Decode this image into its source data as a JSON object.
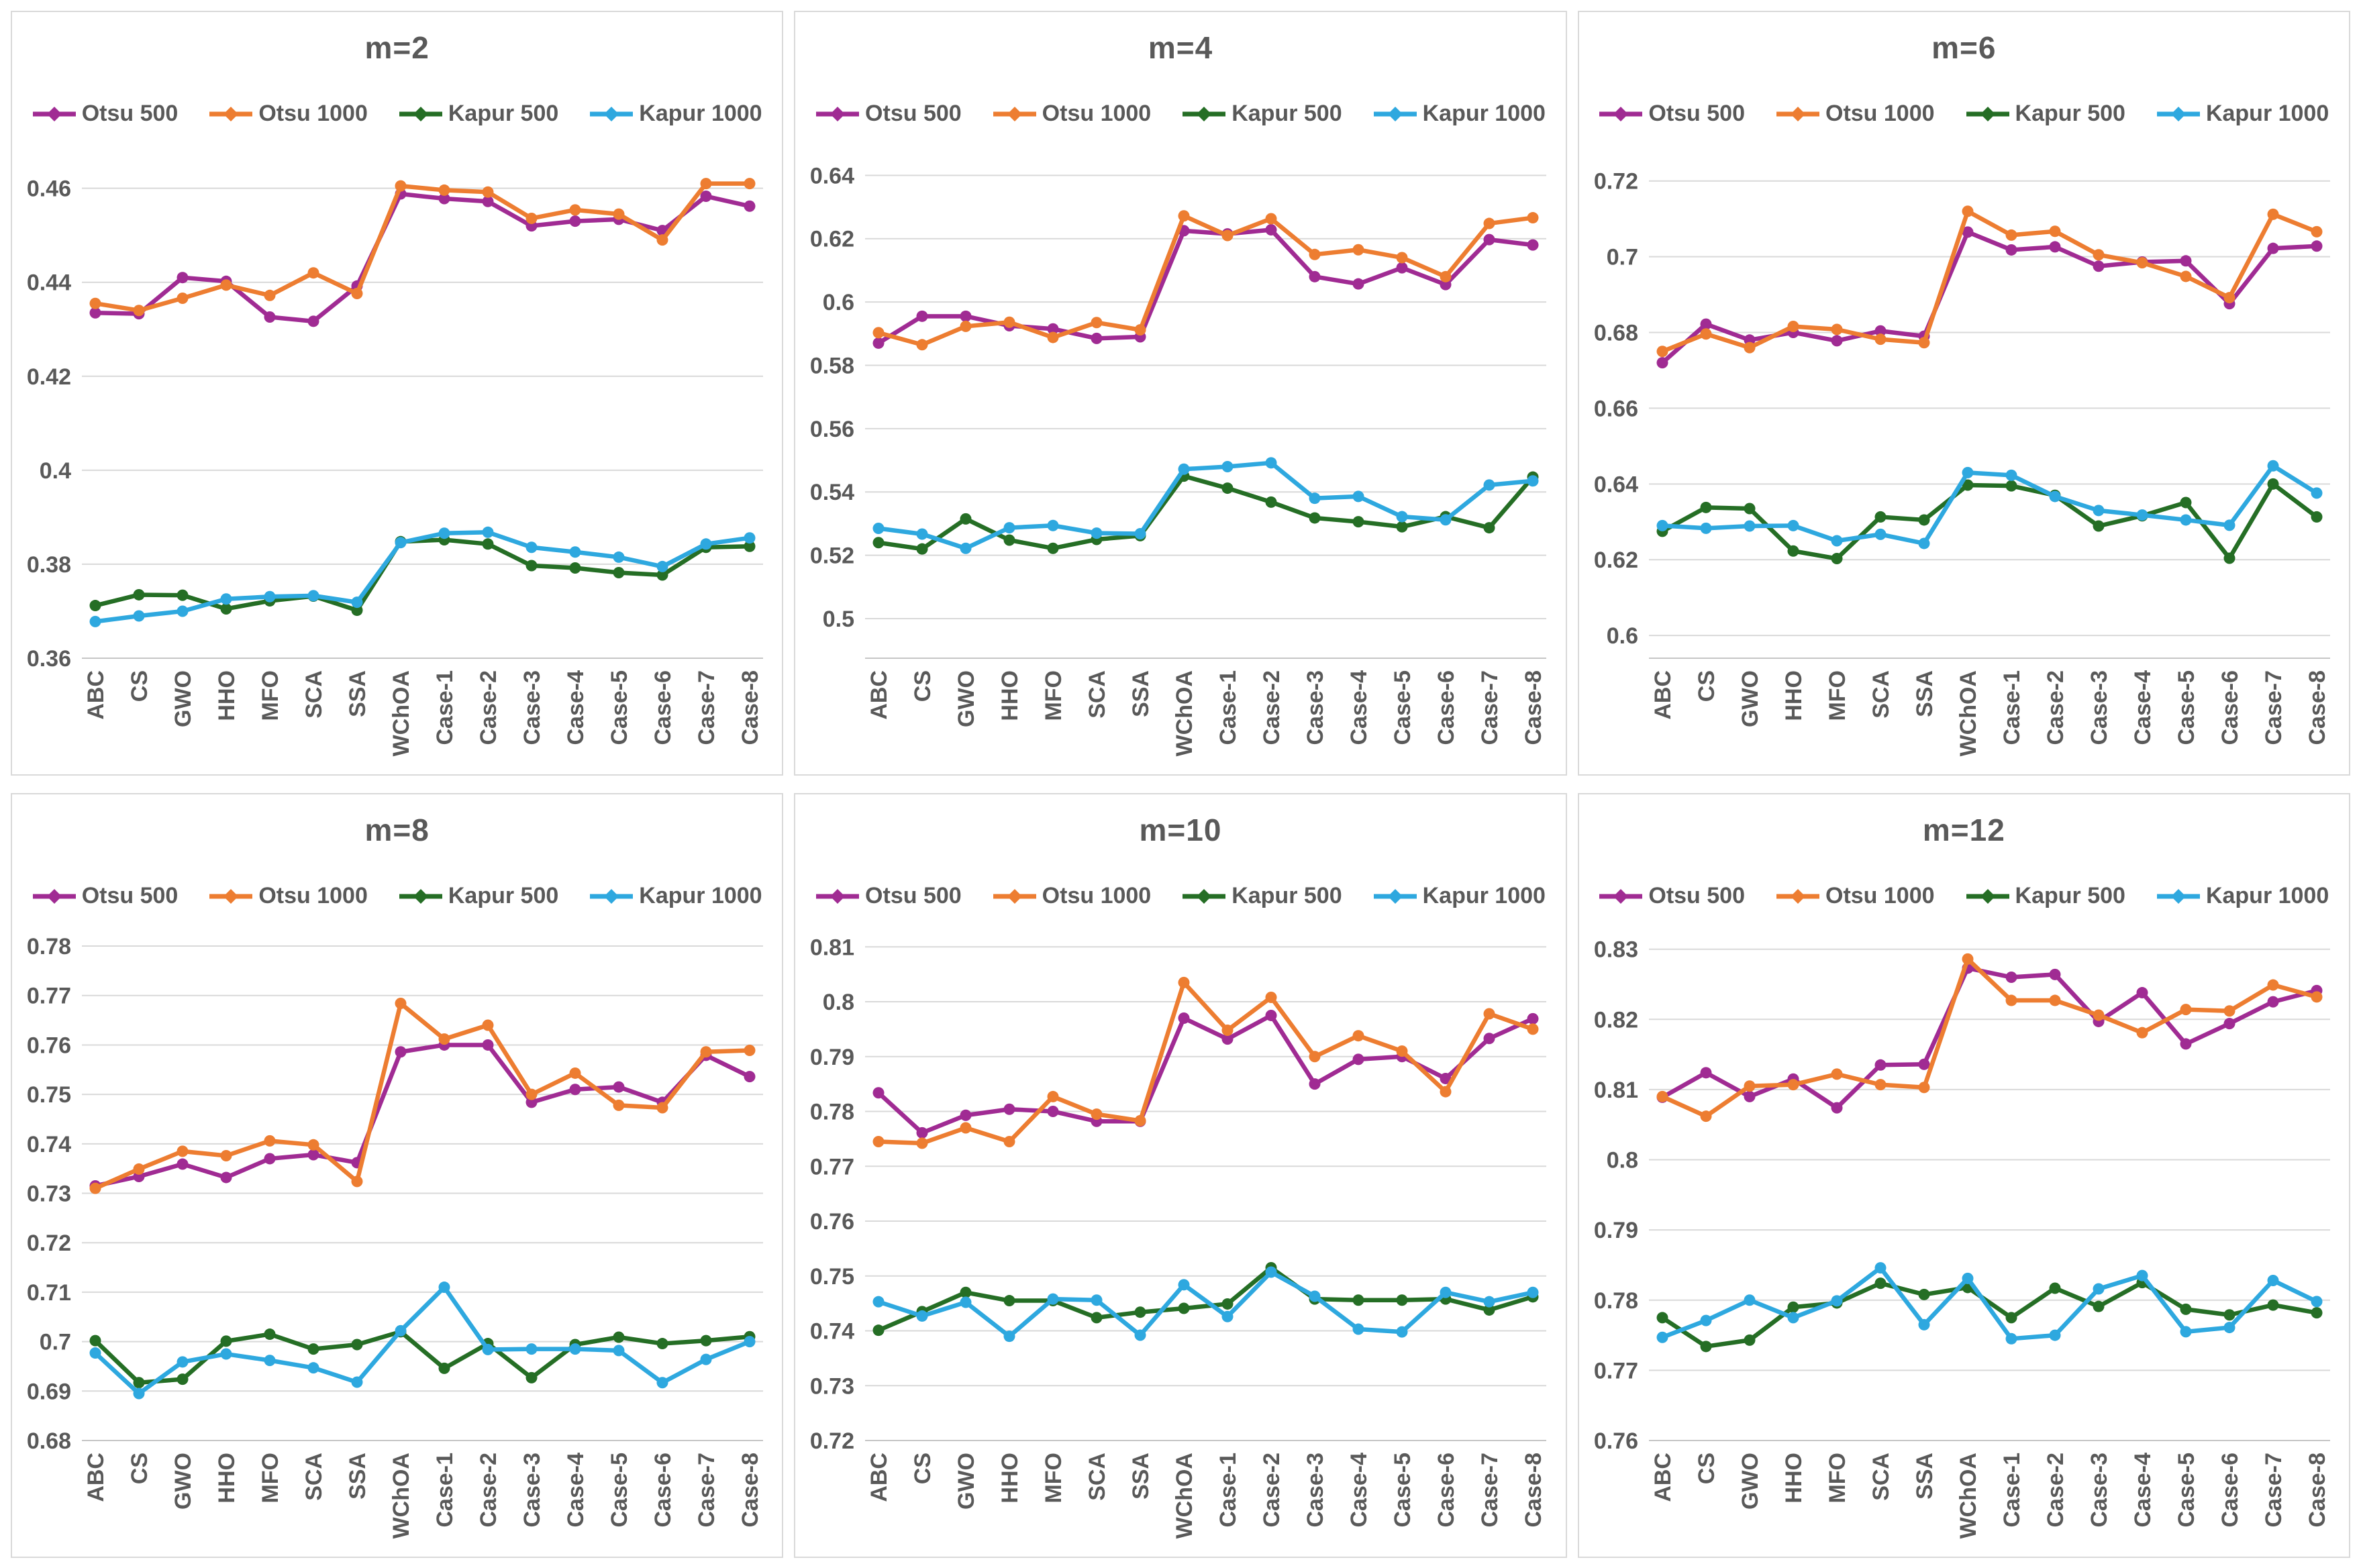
{
  "page": {
    "background": "#FFFFFF",
    "panel_border_color": "#D9D9D9",
    "grid_color": "#D9D9D9",
    "axis_color": "#C6C6C6",
    "text_color": "#595959"
  },
  "legend": {
    "entries": [
      {
        "name": "Otsu 500",
        "color": "#A02B93"
      },
      {
        "name": "Otsu 1000",
        "color": "#ED7D31"
      },
      {
        "name": "Kapur 500",
        "color": "#256E25"
      },
      {
        "name": "Kapur 1000",
        "color": "#2EA8DF"
      }
    ],
    "position": "top"
  },
  "chart_data": [
    {
      "type": "line",
      "title": "m=2",
      "xlabel": "",
      "ylabel": "",
      "grid": true,
      "legend_position": "top",
      "categories": [
        "ABC",
        "CS",
        "GWO",
        "HHO",
        "MFO",
        "SCA",
        "SSA",
        "WChOA",
        "Case-1",
        "Case-2",
        "Case-3",
        "Case-4",
        "Case-5",
        "Case-6",
        "Case-7",
        "Case-8"
      ],
      "y_ticks": [
        0.36,
        0.38,
        0.4,
        0.42,
        0.44,
        0.46
      ],
      "ylim": [
        0.36,
        0.4668
      ],
      "series": [
        {
          "name": "Otsu 500",
          "color": "#A02B93",
          "values": [
            0.4335,
            0.4333,
            0.441,
            0.4402,
            0.4326,
            0.4317,
            0.4392,
            0.4588,
            0.4578,
            0.4572,
            0.452,
            0.453,
            0.4534,
            0.451,
            0.4583,
            0.4562
          ]
        },
        {
          "name": "Otsu 1000",
          "color": "#ED7D31",
          "values": [
            0.4355,
            0.434,
            0.4366,
            0.4394,
            0.4372,
            0.442,
            0.4376,
            0.4605,
            0.4596,
            0.4592,
            0.4536,
            0.4554,
            0.4545,
            0.449,
            0.461,
            0.461
          ]
        },
        {
          "name": "Kapur 500",
          "color": "#256E25",
          "values": [
            0.3712,
            0.3735,
            0.3734,
            0.3705,
            0.3722,
            0.3732,
            0.3702,
            0.3848,
            0.3852,
            0.3843,
            0.3797,
            0.3792,
            0.3782,
            0.3777,
            0.3836,
            0.3838
          ]
        },
        {
          "name": "Kapur 1000",
          "color": "#2EA8DF",
          "values": [
            0.3678,
            0.369,
            0.37,
            0.3726,
            0.3731,
            0.3733,
            0.3719,
            0.3846,
            0.3866,
            0.3868,
            0.3836,
            0.3826,
            0.3815,
            0.3795,
            0.3843,
            0.3856
          ]
        }
      ]
    },
    {
      "type": "line",
      "title": "m=4",
      "xlabel": "",
      "ylabel": "",
      "grid": true,
      "legend_position": "top",
      "categories": [
        "ABC",
        "CS",
        "GWO",
        "HHO",
        "MFO",
        "SCA",
        "SSA",
        "WChOA",
        "Case-1",
        "Case-2",
        "Case-3",
        "Case-4",
        "Case-5",
        "Case-6",
        "Case-7",
        "Case-8"
      ],
      "y_ticks": [
        0.5,
        0.52,
        0.54,
        0.56,
        0.58,
        0.6,
        0.62,
        0.64
      ],
      "ylim": [
        0.4875,
        0.646
      ],
      "series": [
        {
          "name": "Otsu 500",
          "color": "#A02B93",
          "values": [
            0.587,
            0.5955,
            0.5955,
            0.5925,
            0.5915,
            0.5885,
            0.589,
            0.6225,
            0.6215,
            0.6228,
            0.608,
            0.6057,
            0.6108,
            0.6055,
            0.6197,
            0.618
          ]
        },
        {
          "name": "Otsu 1000",
          "color": "#ED7D31",
          "values": [
            0.5903,
            0.5865,
            0.5923,
            0.5936,
            0.5888,
            0.5935,
            0.5912,
            0.6272,
            0.621,
            0.6263,
            0.615,
            0.6165,
            0.614,
            0.608,
            0.6248,
            0.6266
          ]
        },
        {
          "name": "Kapur 500",
          "color": "#256E25",
          "values": [
            0.524,
            0.522,
            0.5315,
            0.5248,
            0.5222,
            0.525,
            0.5262,
            0.545,
            0.5412,
            0.5368,
            0.5318,
            0.5306,
            0.529,
            0.5322,
            0.5287,
            0.5447
          ]
        },
        {
          "name": "Kapur 1000",
          "color": "#2EA8DF",
          "values": [
            0.5285,
            0.5267,
            0.5222,
            0.5287,
            0.5294,
            0.527,
            0.5268,
            0.5472,
            0.548,
            0.5492,
            0.538,
            0.5386,
            0.5322,
            0.5312,
            0.5422,
            0.5435
          ]
        }
      ]
    },
    {
      "type": "line",
      "title": "m=6",
      "xlabel": "",
      "ylabel": "",
      "grid": true,
      "legend_position": "top",
      "categories": [
        "ABC",
        "CS",
        "GWO",
        "HHO",
        "MFO",
        "SCA",
        "SSA",
        "WChOA",
        "Case-1",
        "Case-2",
        "Case-3",
        "Case-4",
        "Case-5",
        "Case-6",
        "Case-7",
        "Case-8"
      ],
      "y_ticks": [
        0.6,
        0.62,
        0.64,
        0.66,
        0.68,
        0.7,
        0.72
      ],
      "ylim": [
        0.594,
        0.7265
      ],
      "series": [
        {
          "name": "Otsu 500",
          "color": "#A02B93",
          "values": [
            0.672,
            0.6822,
            0.678,
            0.68,
            0.6778,
            0.6804,
            0.679,
            0.7065,
            0.7018,
            0.7026,
            0.6975,
            0.6986,
            0.6989,
            0.6876,
            0.7022,
            0.7028
          ]
        },
        {
          "name": "Otsu 1000",
          "color": "#ED7D31",
          "values": [
            0.675,
            0.6796,
            0.676,
            0.6816,
            0.6808,
            0.6782,
            0.6773,
            0.712,
            0.7057,
            0.7067,
            0.7005,
            0.6984,
            0.6948,
            0.6892,
            0.7112,
            0.7066
          ]
        },
        {
          "name": "Kapur 500",
          "color": "#256E25",
          "values": [
            0.6275,
            0.6338,
            0.6335,
            0.6223,
            0.6203,
            0.6313,
            0.6305,
            0.6397,
            0.6395,
            0.637,
            0.6289,
            0.6316,
            0.6351,
            0.6204,
            0.64,
            0.6313
          ]
        },
        {
          "name": "Kapur 1000",
          "color": "#2EA8DF",
          "values": [
            0.629,
            0.6283,
            0.6289,
            0.629,
            0.625,
            0.6267,
            0.6243,
            0.643,
            0.6423,
            0.6367,
            0.633,
            0.6318,
            0.6305,
            0.6291,
            0.6448,
            0.6376
          ]
        }
      ]
    },
    {
      "type": "line",
      "title": "m=8",
      "xlabel": "",
      "ylabel": "",
      "grid": true,
      "legend_position": "top",
      "categories": [
        "ABC",
        "CS",
        "GWO",
        "HHO",
        "MFO",
        "SCA",
        "SSA",
        "WChOA",
        "Case-1",
        "Case-2",
        "Case-3",
        "Case-4",
        "Case-5",
        "Case-6",
        "Case-7",
        "Case-8"
      ],
      "y_ticks": [
        0.68,
        0.69,
        0.7,
        0.71,
        0.72,
        0.73,
        0.74,
        0.75,
        0.76,
        0.77,
        0.78
      ],
      "ylim": [
        0.68,
        0.7815
      ],
      "series": [
        {
          "name": "Otsu 500",
          "color": "#A02B93",
          "values": [
            0.7315,
            0.7334,
            0.7359,
            0.7332,
            0.737,
            0.7378,
            0.7362,
            0.7586,
            0.76,
            0.76,
            0.7484,
            0.751,
            0.7515,
            0.7484,
            0.7579,
            0.7536
          ]
        },
        {
          "name": "Otsu 1000",
          "color": "#ED7D31",
          "values": [
            0.731,
            0.7349,
            0.7385,
            0.7376,
            0.7406,
            0.7398,
            0.7324,
            0.7684,
            0.7612,
            0.764,
            0.75,
            0.7543,
            0.7478,
            0.7473,
            0.7586,
            0.7589
          ]
        },
        {
          "name": "Kapur 500",
          "color": "#256E25",
          "values": [
            0.7002,
            0.6917,
            0.6924,
            0.7001,
            0.7015,
            0.6985,
            0.6994,
            0.702,
            0.6946,
            0.6996,
            0.6927,
            0.6994,
            0.7009,
            0.6996,
            0.7002,
            0.701
          ]
        },
        {
          "name": "Kapur 1000",
          "color": "#2EA8DF",
          "values": [
            0.6977,
            0.6895,
            0.6959,
            0.6975,
            0.6962,
            0.6947,
            0.6918,
            0.7022,
            0.711,
            0.6984,
            0.6985,
            0.6985,
            0.6982,
            0.6917,
            0.6964,
            0.7
          ]
        }
      ]
    },
    {
      "type": "line",
      "title": "m=10",
      "xlabel": "",
      "ylabel": "",
      "grid": true,
      "legend_position": "top",
      "categories": [
        "ABC",
        "CS",
        "GWO",
        "HHO",
        "MFO",
        "SCA",
        "SSA",
        "WChOA",
        "Case-1",
        "Case-2",
        "Case-3",
        "Case-4",
        "Case-5",
        "Case-6",
        "Case-7",
        "Case-8"
      ],
      "y_ticks": [
        0.72,
        0.73,
        0.74,
        0.75,
        0.76,
        0.77,
        0.78,
        0.79,
        0.8,
        0.81
      ],
      "ylim": [
        0.72,
        0.8115
      ],
      "series": [
        {
          "name": "Otsu 500",
          "color": "#A02B93",
          "values": [
            0.7834,
            0.7761,
            0.7793,
            0.7804,
            0.78,
            0.7782,
            0.7782,
            0.797,
            0.7932,
            0.7975,
            0.785,
            0.7895,
            0.79,
            0.786,
            0.7933,
            0.7969
          ]
        },
        {
          "name": "Otsu 1000",
          "color": "#ED7D31",
          "values": [
            0.7745,
            0.7742,
            0.777,
            0.7745,
            0.7827,
            0.7795,
            0.7783,
            0.8035,
            0.7948,
            0.8008,
            0.79,
            0.7938,
            0.791,
            0.7836,
            0.7978,
            0.795
          ]
        },
        {
          "name": "Kapur 500",
          "color": "#256E25",
          "values": [
            0.7401,
            0.7435,
            0.747,
            0.7455,
            0.7455,
            0.7424,
            0.7434,
            0.7441,
            0.7449,
            0.7515,
            0.7458,
            0.7456,
            0.7456,
            0.7458,
            0.7438,
            0.7462
          ]
        },
        {
          "name": "Kapur 1000",
          "color": "#2EA8DF",
          "values": [
            0.7453,
            0.7427,
            0.7452,
            0.739,
            0.7458,
            0.7456,
            0.7392,
            0.7484,
            0.7426,
            0.7507,
            0.7463,
            0.7403,
            0.7398,
            0.747,
            0.7453,
            0.747
          ]
        }
      ]
    },
    {
      "type": "line",
      "title": "m=12",
      "xlabel": "",
      "ylabel": "",
      "grid": true,
      "legend_position": "top",
      "categories": [
        "ABC",
        "CS",
        "GWO",
        "HHO",
        "MFO",
        "SCA",
        "SSA",
        "WChOA",
        "Case-1",
        "Case-2",
        "Case-3",
        "Case-4",
        "Case-5",
        "Case-6",
        "Case-7",
        "Case-8"
      ],
      "y_ticks": [
        0.76,
        0.77,
        0.78,
        0.79,
        0.8,
        0.81,
        0.82,
        0.83
      ],
      "ylim": [
        0.76,
        0.8315
      ],
      "series": [
        {
          "name": "Otsu 500",
          "color": "#A02B93",
          "values": [
            0.8089,
            0.8124,
            0.809,
            0.8115,
            0.8074,
            0.8135,
            0.8136,
            0.8273,
            0.826,
            0.8264,
            0.8197,
            0.8238,
            0.8165,
            0.8194,
            0.8225,
            0.8241
          ]
        },
        {
          "name": "Otsu 1000",
          "color": "#ED7D31",
          "values": [
            0.809,
            0.8062,
            0.8105,
            0.8107,
            0.8122,
            0.8107,
            0.8103,
            0.8286,
            0.8227,
            0.8227,
            0.8206,
            0.8181,
            0.8214,
            0.8212,
            0.8249,
            0.8232
          ]
        },
        {
          "name": "Kapur 500",
          "color": "#256E25",
          "values": [
            0.7775,
            0.7734,
            0.7743,
            0.779,
            0.7796,
            0.7824,
            0.7808,
            0.7818,
            0.7775,
            0.7817,
            0.7791,
            0.7825,
            0.7787,
            0.7779,
            0.7793,
            0.7782
          ]
        },
        {
          "name": "Kapur 1000",
          "color": "#2EA8DF",
          "values": [
            0.7747,
            0.7771,
            0.78,
            0.7775,
            0.7799,
            0.7846,
            0.7765,
            0.7831,
            0.7745,
            0.775,
            0.7816,
            0.7835,
            0.7755,
            0.7761,
            0.7828,
            0.7798
          ]
        }
      ]
    }
  ]
}
